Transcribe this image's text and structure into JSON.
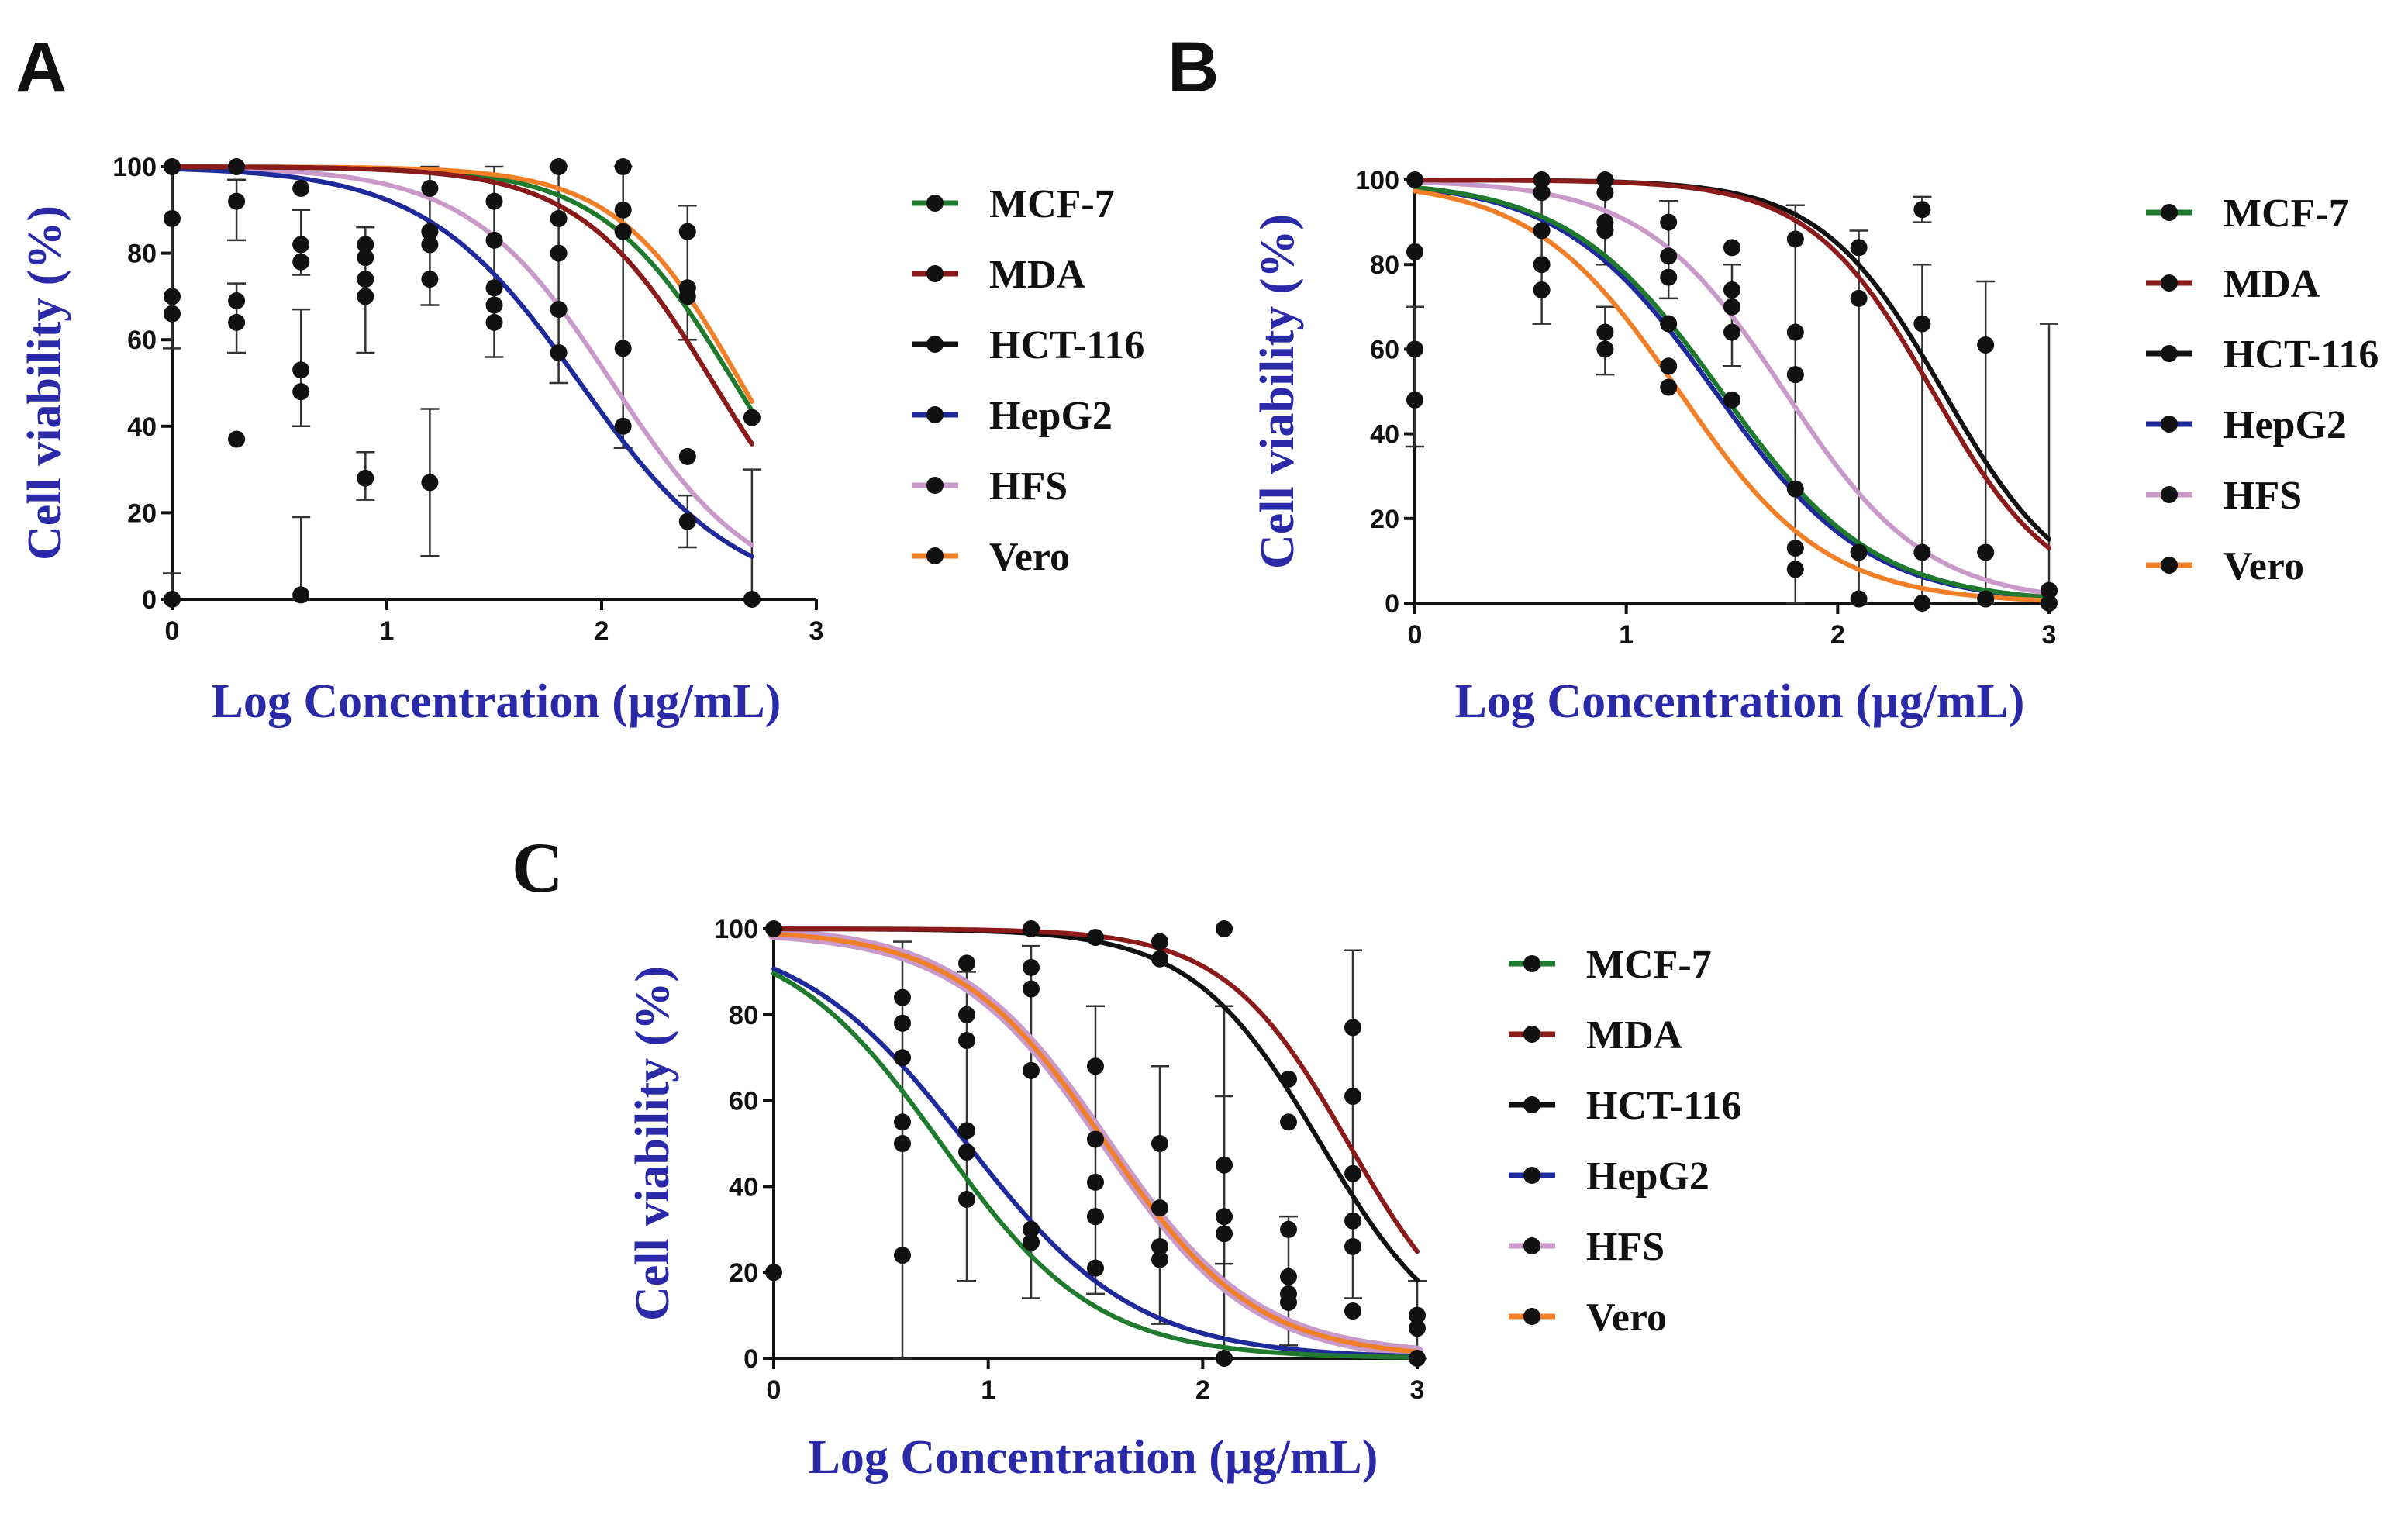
{
  "figure": {
    "panels": [
      "A",
      "B",
      "C"
    ],
    "y_axis_label": "Cell viability (%)",
    "x_axis_label": "Log Concentration (µg/mL)",
    "legend": [
      "MCF-7",
      "MDA",
      "HCT-116",
      "HepG2",
      "HFS",
      "Vero"
    ]
  },
  "colors": {
    "MCF-7": "#1f7a2e",
    "MDA": "#8b1a1a",
    "HCT-116": "#111111",
    "HepG2": "#1f2a9a",
    "HFS": "#c99ac9",
    "Vero": "#f07f28",
    "axis_label": "#2a2aa8",
    "points": "#111111"
  },
  "chart_data": [
    {
      "panel": "A",
      "type": "line",
      "title": "",
      "xlabel": "Log Concentration (µg/mL)",
      "ylabel": "Cell viability (%)",
      "xlim": [
        0,
        3
      ],
      "ylim": [
        0,
        100
      ],
      "xticks": [
        0,
        1,
        2,
        3
      ],
      "yticks": [
        0,
        20,
        40,
        60,
        80,
        100
      ],
      "fit_x_max": 2.7,
      "series": [
        {
          "name": "MCF-7",
          "logIC50": 2.62,
          "hill": 1.4
        },
        {
          "name": "MDA",
          "logIC50": 2.52,
          "hill": 1.4
        },
        {
          "name": "HCT-116",
          "logIC50": 2.52,
          "hill": 1.4
        },
        {
          "name": "HepG2",
          "logIC50": 1.9,
          "hill": 1.2
        },
        {
          "name": "HFS",
          "logIC50": 2.05,
          "hill": 1.3
        },
        {
          "name": "Vero",
          "logIC50": 2.65,
          "hill": 1.5
        }
      ],
      "points": [
        {
          "x": 0,
          "y": 100
        },
        {
          "x": 0,
          "y": 88
        },
        {
          "x": 0,
          "y": 70
        },
        {
          "x": 0,
          "y": 66
        },
        {
          "x": 0,
          "y": 0
        },
        {
          "x": 0.3,
          "y": 100
        },
        {
          "x": 0.3,
          "y": 92
        },
        {
          "x": 0.3,
          "y": 69
        },
        {
          "x": 0.3,
          "y": 64
        },
        {
          "x": 0.3,
          "y": 37
        },
        {
          "x": 0.6,
          "y": 95
        },
        {
          "x": 0.6,
          "y": 82
        },
        {
          "x": 0.6,
          "y": 78
        },
        {
          "x": 0.6,
          "y": 53
        },
        {
          "x": 0.6,
          "y": 48
        },
        {
          "x": 0.6,
          "y": 1
        },
        {
          "x": 0.9,
          "y": 82
        },
        {
          "x": 0.9,
          "y": 79
        },
        {
          "x": 0.9,
          "y": 74
        },
        {
          "x": 0.9,
          "y": 70
        },
        {
          "x": 0.9,
          "y": 28
        },
        {
          "x": 1.2,
          "y": 95
        },
        {
          "x": 1.2,
          "y": 85
        },
        {
          "x": 1.2,
          "y": 82
        },
        {
          "x": 1.2,
          "y": 74
        },
        {
          "x": 1.2,
          "y": 27
        },
        {
          "x": 1.5,
          "y": 92
        },
        {
          "x": 1.5,
          "y": 83
        },
        {
          "x": 1.5,
          "y": 72
        },
        {
          "x": 1.5,
          "y": 68
        },
        {
          "x": 1.5,
          "y": 64
        },
        {
          "x": 1.8,
          "y": 100
        },
        {
          "x": 1.8,
          "y": 88
        },
        {
          "x": 1.8,
          "y": 80
        },
        {
          "x": 1.8,
          "y": 67
        },
        {
          "x": 1.8,
          "y": 57
        },
        {
          "x": 2.1,
          "y": 100
        },
        {
          "x": 2.1,
          "y": 90
        },
        {
          "x": 2.1,
          "y": 85
        },
        {
          "x": 2.1,
          "y": 58
        },
        {
          "x": 2.1,
          "y": 40
        },
        {
          "x": 2.4,
          "y": 85
        },
        {
          "x": 2.4,
          "y": 72
        },
        {
          "x": 2.4,
          "y": 70
        },
        {
          "x": 2.4,
          "y": 33
        },
        {
          "x": 2.4,
          "y": 18
        },
        {
          "x": 2.7,
          "y": 42
        },
        {
          "x": 2.7,
          "y": 0
        }
      ],
      "errors": [
        {
          "x": 0,
          "lo": 58,
          "hi": 100
        },
        {
          "x": 0,
          "lo": 0,
          "hi": 6
        },
        {
          "x": 0.3,
          "lo": 57,
          "hi": 73
        },
        {
          "x": 0.3,
          "lo": 83,
          "hi": 97
        },
        {
          "x": 0.6,
          "lo": 40,
          "hi": 67
        },
        {
          "x": 0.6,
          "lo": 0,
          "hi": 19
        },
        {
          "x": 0.6,
          "lo": 75,
          "hi": 90
        },
        {
          "x": 0.9,
          "lo": 57,
          "hi": 86
        },
        {
          "x": 0.9,
          "lo": 23,
          "hi": 34
        },
        {
          "x": 1.2,
          "lo": 10,
          "hi": 44
        },
        {
          "x": 1.2,
          "lo": 68,
          "hi": 100
        },
        {
          "x": 1.5,
          "lo": 56,
          "hi": 100
        },
        {
          "x": 1.8,
          "lo": 50,
          "hi": 100
        },
        {
          "x": 2.1,
          "lo": 35,
          "hi": 100
        },
        {
          "x": 2.4,
          "lo": 12,
          "hi": 24
        },
        {
          "x": 2.4,
          "lo": 60,
          "hi": 91
        },
        {
          "x": 2.7,
          "lo": 0,
          "hi": 30
        }
      ]
    },
    {
      "panel": "B",
      "type": "line",
      "title": "",
      "xlabel": "Log Concentration (µg/mL)",
      "ylabel": "Cell viability (%)",
      "xlim": [
        0,
        3
      ],
      "ylim": [
        0,
        100
      ],
      "xticks": [
        0,
        1,
        2,
        3
      ],
      "yticks": [
        0,
        20,
        40,
        60,
        80,
        100
      ],
      "fit_x_max": 3,
      "series": [
        {
          "name": "MCF-7",
          "logIC50": 1.45,
          "hill": 1.2
        },
        {
          "name": "MDA",
          "logIC50": 2.45,
          "hill": 1.5
        },
        {
          "name": "HCT-116",
          "logIC50": 2.5,
          "hill": 1.5
        },
        {
          "name": "HepG2",
          "logIC50": 1.42,
          "hill": 1.2
        },
        {
          "name": "HFS",
          "logIC50": 1.75,
          "hill": 1.3
        },
        {
          "name": "Vero",
          "logIC50": 1.25,
          "hill": 1.25
        }
      ],
      "points": [
        {
          "x": 0,
          "y": 100
        },
        {
          "x": 0,
          "y": 83
        },
        {
          "x": 0,
          "y": 60
        },
        {
          "x": 0,
          "y": 48
        },
        {
          "x": 0.6,
          "y": 100
        },
        {
          "x": 0.6,
          "y": 97
        },
        {
          "x": 0.6,
          "y": 88
        },
        {
          "x": 0.6,
          "y": 80
        },
        {
          "x": 0.6,
          "y": 74
        },
        {
          "x": 0.9,
          "y": 100
        },
        {
          "x": 0.9,
          "y": 97
        },
        {
          "x": 0.9,
          "y": 90
        },
        {
          "x": 0.9,
          "y": 88
        },
        {
          "x": 0.9,
          "y": 64
        },
        {
          "x": 0.9,
          "y": 60
        },
        {
          "x": 1.2,
          "y": 90
        },
        {
          "x": 1.2,
          "y": 82
        },
        {
          "x": 1.2,
          "y": 77
        },
        {
          "x": 1.2,
          "y": 66
        },
        {
          "x": 1.2,
          "y": 56
        },
        {
          "x": 1.2,
          "y": 51
        },
        {
          "x": 1.5,
          "y": 84
        },
        {
          "x": 1.5,
          "y": 74
        },
        {
          "x": 1.5,
          "y": 70
        },
        {
          "x": 1.5,
          "y": 64
        },
        {
          "x": 1.5,
          "y": 48
        },
        {
          "x": 1.8,
          "y": 86
        },
        {
          "x": 1.8,
          "y": 64
        },
        {
          "x": 1.8,
          "y": 54
        },
        {
          "x": 1.8,
          "y": 27
        },
        {
          "x": 1.8,
          "y": 13
        },
        {
          "x": 1.8,
          "y": 8
        },
        {
          "x": 2.1,
          "y": 84
        },
        {
          "x": 2.1,
          "y": 72
        },
        {
          "x": 2.1,
          "y": 12
        },
        {
          "x": 2.1,
          "y": 1
        },
        {
          "x": 2.4,
          "y": 93
        },
        {
          "x": 2.4,
          "y": 66
        },
        {
          "x": 2.4,
          "y": 12
        },
        {
          "x": 2.4,
          "y": 0
        },
        {
          "x": 2.7,
          "y": 61
        },
        {
          "x": 2.7,
          "y": 12
        },
        {
          "x": 2.7,
          "y": 1
        },
        {
          "x": 3,
          "y": 3
        },
        {
          "x": 3,
          "y": 0
        }
      ],
      "errors": [
        {
          "x": 0,
          "lo": 37,
          "hi": 70
        },
        {
          "x": 0.6,
          "lo": 66,
          "hi": 100
        },
        {
          "x": 0.9,
          "lo": 54,
          "hi": 70
        },
        {
          "x": 0.9,
          "lo": 80,
          "hi": 100
        },
        {
          "x": 1.2,
          "lo": 72,
          "hi": 95
        },
        {
          "x": 1.5,
          "lo": 56,
          "hi": 80
        },
        {
          "x": 1.8,
          "lo": 0,
          "hi": 94
        },
        {
          "x": 2.1,
          "lo": 0,
          "hi": 88
        },
        {
          "x": 2.4,
          "lo": 0,
          "hi": 80
        },
        {
          "x": 2.4,
          "lo": 90,
          "hi": 96
        },
        {
          "x": 2.7,
          "lo": 0,
          "hi": 76
        },
        {
          "x": 3,
          "lo": 0,
          "hi": 66
        }
      ]
    },
    {
      "panel": "C",
      "type": "line",
      "title": "",
      "xlabel": "Log Concentration (µg/mL)",
      "ylabel": "Cell viability (%)",
      "xlim": [
        0,
        3
      ],
      "ylim": [
        0,
        100
      ],
      "xticks": [
        0,
        1,
        2,
        3
      ],
      "yticks": [
        0,
        20,
        40,
        60,
        80,
        100
      ],
      "fit_x_max": 3,
      "series": [
        {
          "name": "MCF-7",
          "logIC50": 0.78,
          "hill": 1.2
        },
        {
          "name": "MDA",
          "logIC50": 2.68,
          "hill": 1.5
        },
        {
          "name": "HCT-116",
          "logIC50": 2.55,
          "hill": 1.45
        },
        {
          "name": "HepG2",
          "logIC50": 0.9,
          "hill": 1.1
        },
        {
          "name": "HFS",
          "logIC50": 1.55,
          "hill": 1.25
        },
        {
          "name": "Vero",
          "logIC50": 1.55,
          "hill": 1.25
        }
      ],
      "points": [
        {
          "x": 0,
          "y": 100
        },
        {
          "x": 0,
          "y": 20
        },
        {
          "x": 0.6,
          "y": 84
        },
        {
          "x": 0.6,
          "y": 78
        },
        {
          "x": 0.6,
          "y": 70
        },
        {
          "x": 0.6,
          "y": 55
        },
        {
          "x": 0.6,
          "y": 50
        },
        {
          "x": 0.6,
          "y": 24
        },
        {
          "x": 0.9,
          "y": 92
        },
        {
          "x": 0.9,
          "y": 80
        },
        {
          "x": 0.9,
          "y": 74
        },
        {
          "x": 0.9,
          "y": 53
        },
        {
          "x": 0.9,
          "y": 48
        },
        {
          "x": 0.9,
          "y": 37
        },
        {
          "x": 1.2,
          "y": 100
        },
        {
          "x": 1.2,
          "y": 91
        },
        {
          "x": 1.2,
          "y": 86
        },
        {
          "x": 1.2,
          "y": 67
        },
        {
          "x": 1.2,
          "y": 30
        },
        {
          "x": 1.2,
          "y": 27
        },
        {
          "x": 1.5,
          "y": 98
        },
        {
          "x": 1.5,
          "y": 68
        },
        {
          "x": 1.5,
          "y": 51
        },
        {
          "x": 1.5,
          "y": 41
        },
        {
          "x": 1.5,
          "y": 33
        },
        {
          "x": 1.5,
          "y": 21
        },
        {
          "x": 1.8,
          "y": 97
        },
        {
          "x": 1.8,
          "y": 93
        },
        {
          "x": 1.8,
          "y": 50
        },
        {
          "x": 1.8,
          "y": 35
        },
        {
          "x": 1.8,
          "y": 26
        },
        {
          "x": 1.8,
          "y": 23
        },
        {
          "x": 2.1,
          "y": 100
        },
        {
          "x": 2.1,
          "y": 45
        },
        {
          "x": 2.1,
          "y": 33
        },
        {
          "x": 2.1,
          "y": 29
        },
        {
          "x": 2.1,
          "y": 0
        },
        {
          "x": 2.4,
          "y": 65
        },
        {
          "x": 2.4,
          "y": 55
        },
        {
          "x": 2.4,
          "y": 30
        },
        {
          "x": 2.4,
          "y": 19
        },
        {
          "x": 2.4,
          "y": 15
        },
        {
          "x": 2.4,
          "y": 13
        },
        {
          "x": 2.7,
          "y": 77
        },
        {
          "x": 2.7,
          "y": 61
        },
        {
          "x": 2.7,
          "y": 43
        },
        {
          "x": 2.7,
          "y": 32
        },
        {
          "x": 2.7,
          "y": 26
        },
        {
          "x": 2.7,
          "y": 11
        },
        {
          "x": 3,
          "y": 10
        },
        {
          "x": 3,
          "y": 7
        },
        {
          "x": 3,
          "y": 0
        }
      ],
      "errors": [
        {
          "x": 0.6,
          "lo": 0,
          "hi": 97
        },
        {
          "x": 0.9,
          "lo": 18,
          "hi": 90
        },
        {
          "x": 1.2,
          "lo": 14,
          "hi": 96
        },
        {
          "x": 1.5,
          "lo": 15,
          "hi": 82
        },
        {
          "x": 1.8,
          "lo": 8,
          "hi": 68
        },
        {
          "x": 2.1,
          "lo": 0,
          "hi": 82
        },
        {
          "x": 2.1,
          "lo": 22,
          "hi": 61
        },
        {
          "x": 2.4,
          "lo": 3,
          "hi": 33
        },
        {
          "x": 2.7,
          "lo": 14,
          "hi": 95
        },
        {
          "x": 3,
          "lo": 0,
          "hi": 18
        }
      ]
    }
  ]
}
